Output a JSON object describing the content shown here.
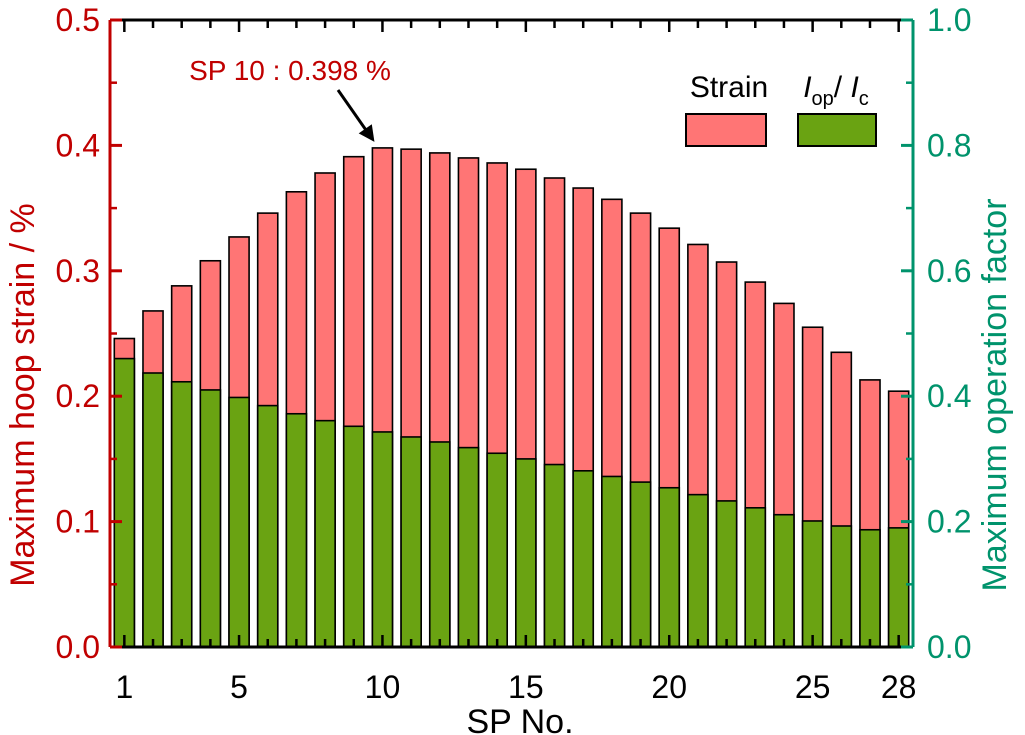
{
  "chart_data": {
    "type": "bar",
    "title": "",
    "xlabel": "SP No.",
    "ylabel_left": "Maximum hoop strain / %",
    "ylabel_right": "Maximum operation factor",
    "x_tick_labels": [
      "1",
      "5",
      "10",
      "15",
      "20",
      "25",
      "28"
    ],
    "x_ticks": [
      1,
      5,
      10,
      15,
      20,
      25,
      28
    ],
    "categories": [
      1,
      2,
      3,
      4,
      5,
      6,
      7,
      8,
      9,
      10,
      11,
      12,
      13,
      14,
      15,
      16,
      17,
      18,
      19,
      20,
      21,
      22,
      23,
      24,
      25,
      26,
      27,
      28
    ],
    "ylim_left": [
      0,
      0.5
    ],
    "ylim_right": [
      0,
      1.0
    ],
    "y_left_tick_labels": [
      "0.0",
      "0.1",
      "0.2",
      "0.3",
      "0.4",
      "0.5"
    ],
    "y_right_tick_labels": [
      "0.0",
      "0.2",
      "0.4",
      "0.6",
      "0.8",
      "1.0"
    ],
    "grid": false,
    "legend_position": "top-right",
    "annotation": {
      "text": "SP 10 : 0.398 %",
      "target_sp": 10
    },
    "series": [
      {
        "name": "Strain",
        "axis": "left",
        "color": "#ff7575",
        "values": [
          0.246,
          0.268,
          0.288,
          0.308,
          0.327,
          0.346,
          0.363,
          0.378,
          0.391,
          0.398,
          0.397,
          0.394,
          0.39,
          0.386,
          0.381,
          0.374,
          0.366,
          0.357,
          0.346,
          0.334,
          0.321,
          0.307,
          0.291,
          0.274,
          0.255,
          0.235,
          0.213,
          0.204
        ]
      },
      {
        "name": "Iop/Ic",
        "name_parts": {
          "main1": "I",
          "sub1": "op",
          "sep": "/ ",
          "main2": "I",
          "sub2": "c"
        },
        "axis": "right",
        "color": "#6aa312",
        "values": [
          0.46,
          0.437,
          0.423,
          0.41,
          0.398,
          0.385,
          0.372,
          0.361,
          0.352,
          0.343,
          0.335,
          0.327,
          0.318,
          0.309,
          0.3,
          0.291,
          0.281,
          0.272,
          0.263,
          0.254,
          0.243,
          0.233,
          0.222,
          0.211,
          0.201,
          0.193,
          0.187,
          0.19
        ]
      }
    ],
    "colors": {
      "left_axis": "#c00000",
      "right_axis": "#00936c",
      "axis": "#000000"
    }
  }
}
